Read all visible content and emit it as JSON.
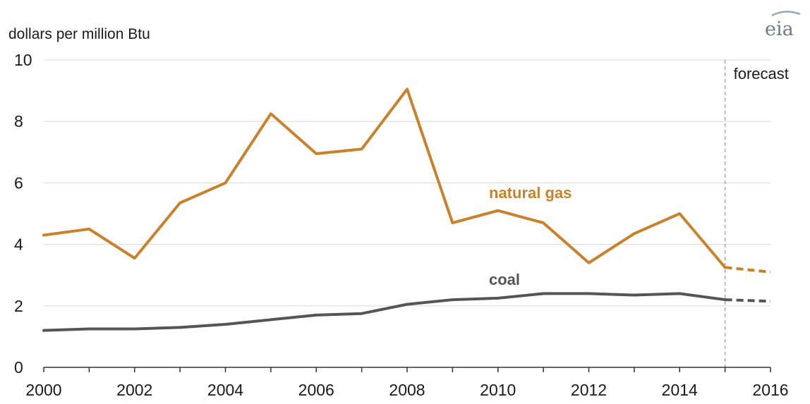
{
  "logo_text": "eia",
  "chart_data": {
    "type": "line",
    "ylabel": "dollars per million Btu",
    "xlim": [
      2000,
      2016
    ],
    "ylim": [
      0,
      10
    ],
    "x_ticks": [
      2000,
      2002,
      2004,
      2006,
      2008,
      2010,
      2012,
      2014,
      2016
    ],
    "y_ticks": [
      0,
      2,
      4,
      6,
      8,
      10
    ],
    "grid": true,
    "forecast_start": 2015,
    "forecast_label": "forecast",
    "colors": {
      "natural_gas": "#c9822a",
      "coal": "#555555",
      "grid": "#d9d9d9",
      "axis": "#333333",
      "forecast_line": "#999999"
    },
    "series": [
      {
        "name": "natural gas",
        "key": "natural_gas",
        "x": [
          2000,
          2001,
          2002,
          2003,
          2004,
          2005,
          2006,
          2007,
          2008,
          2009,
          2010,
          2011,
          2012,
          2013,
          2014,
          2015
        ],
        "values": [
          4.3,
          4.5,
          3.55,
          5.35,
          6.0,
          8.25,
          6.95,
          7.1,
          9.05,
          4.7,
          5.1,
          4.7,
          3.4,
          4.35,
          5.0,
          3.25
        ],
        "forecast_x": [
          2015,
          2016
        ],
        "forecast_values": [
          3.25,
          3.1
        ]
      },
      {
        "name": "coal",
        "key": "coal",
        "x": [
          2000,
          2001,
          2002,
          2003,
          2004,
          2005,
          2006,
          2007,
          2008,
          2009,
          2010,
          2011,
          2012,
          2013,
          2014,
          2015
        ],
        "values": [
          1.2,
          1.25,
          1.25,
          1.3,
          1.4,
          1.55,
          1.7,
          1.75,
          2.05,
          2.2,
          2.25,
          2.4,
          2.4,
          2.35,
          2.4,
          2.2
        ],
        "forecast_x": [
          2015,
          2016
        ],
        "forecast_values": [
          2.2,
          2.15
        ]
      }
    ]
  }
}
